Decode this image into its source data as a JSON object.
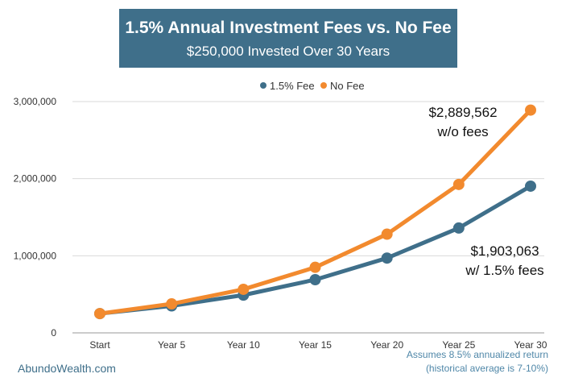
{
  "header": {
    "title": "1.5% Annual Investment Fees vs. No Fee",
    "subtitle": "$250,000 Invested Over 30 Years"
  },
  "footer": {
    "brand": "AbundoWealth.com",
    "note_line1": "Assumes 8.5% annualized return",
    "note_line2": "(historical average is 7-10%)"
  },
  "colors": {
    "fee": "#3f6f8a",
    "nofee": "#f28a2e",
    "header_bg": "#3f6f8a"
  },
  "chart_data": {
    "type": "line",
    "categories": [
      "Start",
      "Year 5",
      "Year 10",
      "Year 15",
      "Year 20",
      "Year 25",
      "Year 30"
    ],
    "yticks": [
      "0",
      "1,000,000",
      "2,000,000",
      "3,000,000"
    ],
    "ylim": [
      0,
      3000000
    ],
    "legend_position": "top-center",
    "grid": "horizontal",
    "series": [
      {
        "name": "1.5% Fee",
        "color": "#3f6f8a",
        "values": [
          250000,
          350000,
          490000,
          690000,
          970000,
          1360000,
          1903063
        ]
      },
      {
        "name": "No Fee",
        "color": "#f28a2e",
        "values": [
          250000,
          376000,
          565000,
          850000,
          1280000,
          1925000,
          2889562
        ]
      }
    ],
    "annotations": [
      {
        "line1": "$2,889,562",
        "line2": "w/o fees"
      },
      {
        "line1": "$1,903,063",
        "line2": "w/ 1.5% fees"
      }
    ]
  }
}
